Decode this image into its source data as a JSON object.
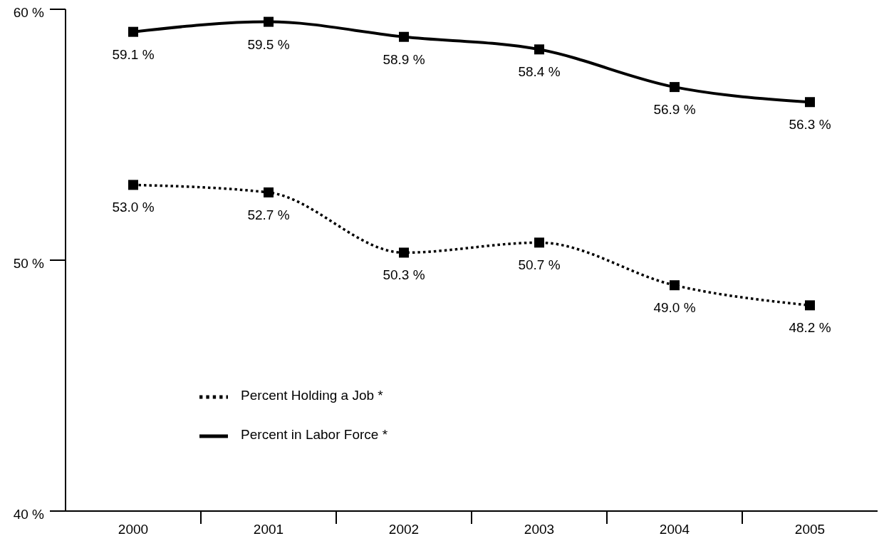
{
  "chart_data": {
    "type": "line",
    "categories": [
      "2000",
      "2001",
      "2002",
      "2003",
      "2004",
      "2005"
    ],
    "series": [
      {
        "name": "Percent in Labor Force *",
        "color": "#000000",
        "line_style": "solid",
        "values": [
          59.1,
          59.5,
          58.9,
          58.4,
          56.9,
          56.3
        ],
        "value_labels": [
          "59.1 %",
          "59.5 %",
          "58.9 %",
          "58.4 %",
          "56.9 %",
          "56.3 %"
        ]
      },
      {
        "name": "Percent Holding a Job *",
        "color": "#000000",
        "line_style": "dotted",
        "values": [
          53.0,
          52.7,
          50.3,
          50.7,
          49.0,
          48.2
        ],
        "value_labels": [
          "53.0 %",
          "52.7 %",
          "50.3 %",
          "50.7 %",
          "49.0 %",
          "48.2 %"
        ]
      }
    ],
    "ylim": [
      40,
      60
    ],
    "yticks": [
      {
        "value": 40,
        "label": "40 %"
      },
      {
        "value": 50,
        "label": "50 %"
      },
      {
        "value": 60,
        "label": "60 %"
      }
    ],
    "marker": "square",
    "grid": false,
    "legend": "bottom left"
  }
}
